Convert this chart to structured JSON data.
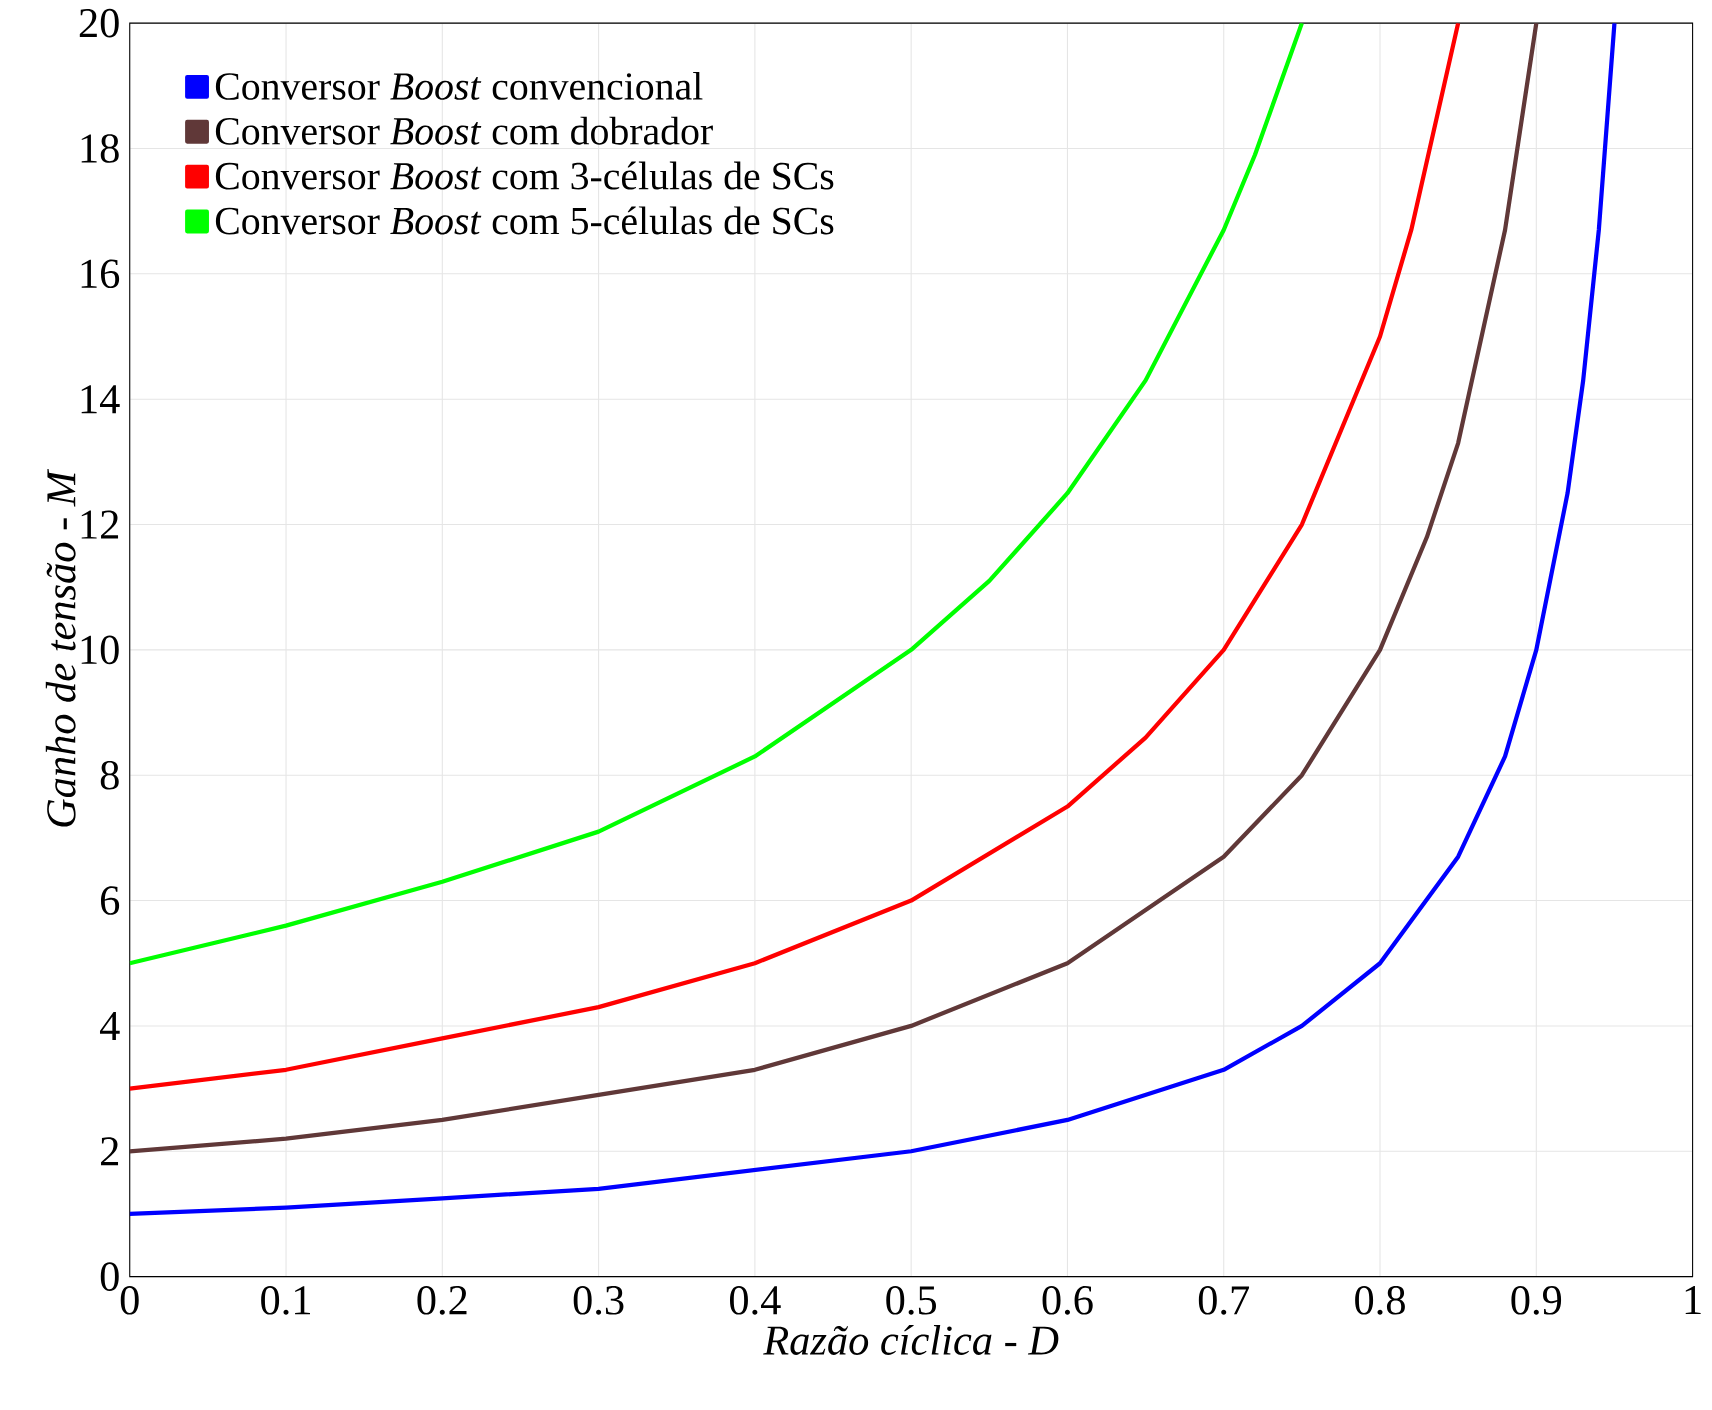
{
  "chart_data": {
    "type": "line",
    "xlabel": "Razão cíclica - D",
    "ylabel": "Ganho de tensão - M",
    "xlim": [
      0,
      1
    ],
    "ylim": [
      0,
      20
    ],
    "xticks": [
      0,
      0.1,
      0.2,
      0.3,
      0.4,
      0.5,
      0.6,
      0.7,
      0.8,
      0.9,
      1
    ],
    "yticks": [
      0,
      2,
      4,
      6,
      8,
      10,
      12,
      14,
      16,
      18,
      20
    ],
    "grid": true,
    "legend": "top left",
    "marker": "none",
    "line_style": "solid",
    "series": [
      {
        "name": "Conversor *Boost* convencional",
        "color": "#0000ff",
        "x": [
          0,
          0.1,
          0.2,
          0.3,
          0.4,
          0.5,
          0.6,
          0.7,
          0.75,
          0.8,
          0.85,
          0.88,
          0.9,
          0.92,
          0.93,
          0.94,
          0.95
        ],
        "values": [
          1,
          1.1,
          1.25,
          1.4,
          1.7,
          2,
          2.5,
          3.3,
          4,
          5,
          6.7,
          8.3,
          10,
          12.5,
          14.3,
          16.7,
          20
        ]
      },
      {
        "name": "Conversor *Boost* com dobrador",
        "color": "#603838",
        "x": [
          0,
          0.1,
          0.2,
          0.3,
          0.4,
          0.5,
          0.6,
          0.7,
          0.75,
          0.8,
          0.83,
          0.85,
          0.88,
          0.9
        ],
        "values": [
          2,
          2.2,
          2.5,
          2.9,
          3.3,
          4,
          5,
          6.7,
          8,
          10,
          11.8,
          13.3,
          16.7,
          20
        ]
      },
      {
        "name": "Conversor *Boost* com 3-células de SCs",
        "color": "#ff0000",
        "x": [
          0,
          0.1,
          0.2,
          0.3,
          0.4,
          0.5,
          0.6,
          0.65,
          0.7,
          0.75,
          0.8,
          0.82,
          0.85
        ],
        "values": [
          3,
          3.3,
          3.8,
          4.3,
          5,
          6,
          7.5,
          8.6,
          10,
          12,
          15,
          16.7,
          20
        ]
      },
      {
        "name": "Conversor *Boost* com 5-células de SCs",
        "color": "#00ff00",
        "x": [
          0,
          0.1,
          0.2,
          0.3,
          0.4,
          0.5,
          0.55,
          0.6,
          0.65,
          0.7,
          0.72,
          0.75
        ],
        "values": [
          5,
          5.6,
          6.3,
          7.1,
          8.3,
          10,
          11.1,
          12.5,
          14.3,
          16.7,
          17.9,
          20
        ]
      }
    ]
  }
}
